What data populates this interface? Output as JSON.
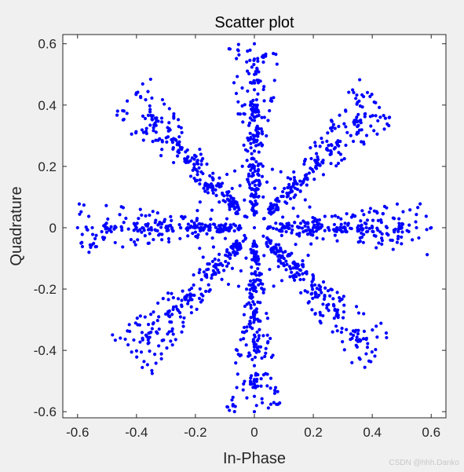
{
  "chart_data": {
    "type": "scatter",
    "title": "Scatter plot",
    "xlabel": "In-Phase",
    "ylabel": "Quadrature",
    "xlim": [
      -0.65,
      0.65
    ],
    "ylim": [
      -0.62,
      0.63
    ],
    "xticks": [
      -0.6,
      -0.4,
      -0.2,
      0,
      0.2,
      0.4,
      0.6
    ],
    "xtick_labels": [
      "-0.6",
      "-0.4",
      "-0.2",
      "0",
      "0.2",
      "0.4",
      "0.6"
    ],
    "yticks": [
      -0.6,
      -0.4,
      -0.2,
      0,
      0.2,
      0.4,
      0.6
    ],
    "ytick_labels": [
      "-0.6",
      "-0.4",
      "-0.2",
      "0",
      "0.2",
      "0.4",
      "0.6"
    ],
    "grid": false,
    "marker_color": "#0000ff",
    "constellation": {
      "arms": 8,
      "arm_angles_deg": [
        0,
        45,
        90,
        135,
        180,
        225,
        270,
        315
      ],
      "arm_max_radius": 0.6,
      "dense_clusters_radii": [
        0.1,
        0.2,
        0.3,
        0.38,
        0.5
      ],
      "inner_ring_radii": [
        0.1,
        0.15,
        0.2
      ],
      "center": [
        0,
        0
      ]
    },
    "series": [
      {
        "points_on_axes": [
          [
            0.6,
            0
          ],
          [
            0.55,
            0
          ],
          [
            0.5,
            0
          ],
          [
            0.45,
            0
          ],
          [
            0.4,
            0
          ],
          [
            0.38,
            0
          ],
          [
            0.35,
            0
          ],
          [
            0.3,
            0
          ],
          [
            0.28,
            0
          ],
          [
            0.25,
            0
          ],
          [
            0.2,
            0
          ],
          [
            0.15,
            0
          ],
          [
            0.1,
            0
          ],
          [
            0.05,
            0
          ],
          [
            -0.6,
            0
          ],
          [
            -0.55,
            0
          ],
          [
            -0.5,
            0
          ],
          [
            -0.45,
            0
          ],
          [
            -0.4,
            0
          ],
          [
            -0.38,
            0
          ],
          [
            -0.35,
            0
          ],
          [
            -0.3,
            0
          ],
          [
            -0.28,
            0
          ],
          [
            -0.25,
            0
          ],
          [
            -0.2,
            0
          ],
          [
            -0.15,
            0
          ],
          [
            -0.1,
            0
          ],
          [
            -0.05,
            0
          ],
          [
            0,
            0.6
          ],
          [
            0,
            0.55
          ],
          [
            0,
            0.5
          ],
          [
            0,
            0.45
          ],
          [
            0,
            0.4
          ],
          [
            0,
            0.38
          ],
          [
            0,
            0.35
          ],
          [
            0,
            0.3
          ],
          [
            0,
            0.28
          ],
          [
            0,
            0.25
          ],
          [
            0,
            0.2
          ],
          [
            0,
            0.15
          ],
          [
            0,
            0.1
          ],
          [
            0,
            0.05
          ],
          [
            0,
            -0.6
          ],
          [
            0,
            -0.55
          ],
          [
            0,
            -0.5
          ],
          [
            0,
            -0.45
          ],
          [
            0,
            -0.4
          ],
          [
            0,
            -0.38
          ],
          [
            0,
            -0.35
          ],
          [
            0,
            -0.3
          ],
          [
            0,
            -0.28
          ],
          [
            0,
            -0.25
          ],
          [
            0,
            -0.2
          ],
          [
            0,
            -0.15
          ],
          [
            0,
            -0.1
          ],
          [
            0,
            -0.05
          ],
          [
            0,
            0
          ]
        ]
      }
    ]
  },
  "watermark": "CSDN @hhh.Danko"
}
